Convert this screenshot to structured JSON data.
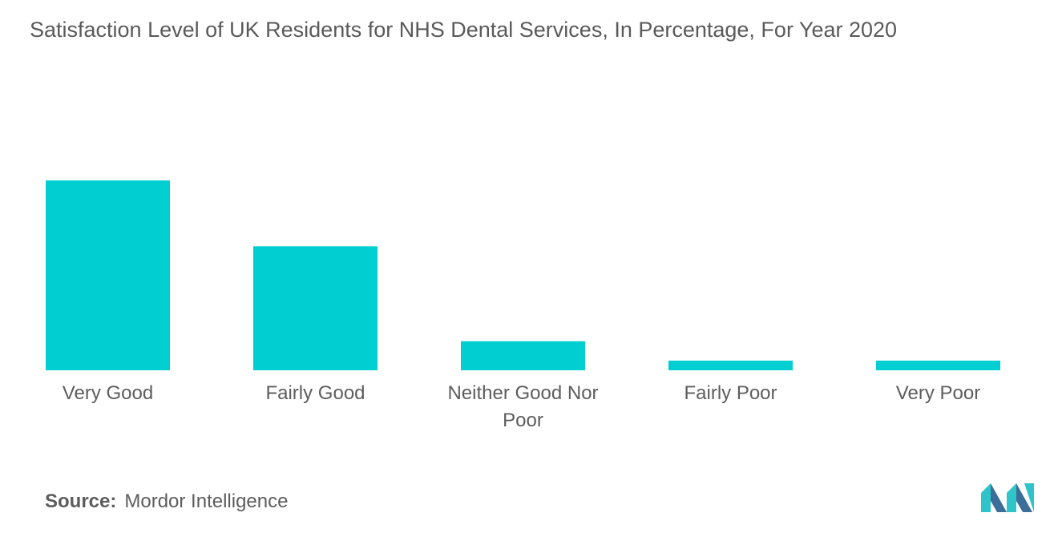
{
  "title": "Satisfaction Level of UK Residents for NHS Dental Services, In Percentage, For Year 2020",
  "source": {
    "label": "Source:",
    "text": "Mordor Intelligence"
  },
  "colors": {
    "bar": "#00ced1",
    "text": "#5d5d5d",
    "logo_dark": "#3b6f9a",
    "logo_light": "#2ec4c9"
  },
  "chart_data": {
    "type": "bar",
    "categories": [
      "Very Good",
      "Fairly Good",
      "Neither Good Nor Poor",
      "Fairly Poor",
      "Very Poor"
    ],
    "category_lines": [
      [
        "Very Good"
      ],
      [
        "Fairly Good"
      ],
      [
        "Neither Good Nor",
        "Poor"
      ],
      [
        "Fairly Poor"
      ],
      [
        "Very Poor"
      ]
    ],
    "values": [
      49,
      32,
      7.5,
      2.5,
      2.5
    ],
    "ylim": [
      0,
      60
    ],
    "xlabel": "",
    "ylabel": "",
    "grid": false,
    "legend": false
  }
}
